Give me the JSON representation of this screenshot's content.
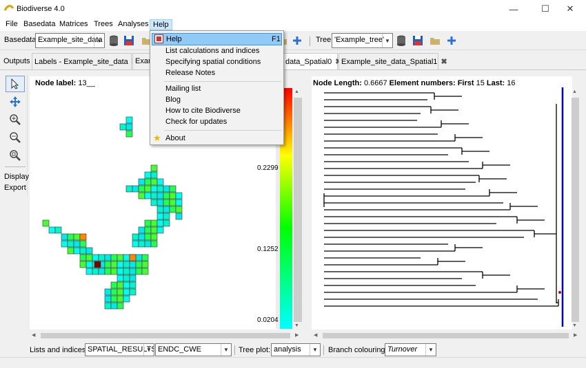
{
  "window": {
    "title": "Biodiverse 4.0",
    "minimize_icon": "minimize-icon",
    "maximize_icon": "maximize-icon",
    "close_icon": "close-icon"
  },
  "menubar": {
    "items": [
      "File",
      "Basedata",
      "Matrices",
      "Trees",
      "Analyses",
      "Help"
    ],
    "active": "Help"
  },
  "help_menu": {
    "items": [
      {
        "label": "Help",
        "shortcut": "F1",
        "icon": "help-book-icon"
      },
      {
        "label": "List calculations and indices"
      },
      {
        "label": "Specifying spatial conditions"
      },
      {
        "label": "Release Notes"
      },
      {
        "label": "Mailing list"
      },
      {
        "label": "Blog"
      },
      {
        "label": "How to cite Biodiverse"
      },
      {
        "label": "Check for updates"
      },
      {
        "label": "About",
        "icon": "star-icon"
      }
    ]
  },
  "toolbar": {
    "basedata_label": "Basedata",
    "basedata_value": "Example_site_data",
    "tree_label": "Tree",
    "tree_value": "'Example_tree'"
  },
  "tabs": {
    "outputs_label": "Outputs",
    "items": [
      {
        "label": "Labels - Example_site_data"
      },
      {
        "label": "Exam"
      },
      {
        "label": "data_Spatial0"
      },
      {
        "label": "Example_site_data_Spatial1"
      }
    ]
  },
  "left_tools": {
    "display": "Display",
    "export": "Export"
  },
  "map": {
    "node_label_prefix": "Node label:",
    "node_label_value": "13__"
  },
  "legend": {
    "ticks": [
      "0.2299",
      "0.1252",
      "0.0204"
    ],
    "colors": [
      "#ff0000",
      "#ffff00",
      "#00ff00",
      "#00ffff"
    ]
  },
  "tree": {
    "node_length_label": "Node Length:",
    "node_length_value": "0.6667",
    "element_numbers_label": "Element numbers: First",
    "first_value": "15",
    "last_label": "Last:",
    "last_value": "16"
  },
  "bottom": {
    "lists_label": "Lists and indices:",
    "lists_value": "SPATIAL_RESULTS",
    "index_value": "ENDC_CWE",
    "tree_plot_label": "Tree plot:",
    "tree_plot_value": "analysis",
    "branch_label": "Branch colouring:",
    "branch_value": "Turnover"
  },
  "colors": {
    "accent": "#0000cc",
    "highlight": "#91c9f7",
    "map_cyan": "#00ffee",
    "map_green": "#22ff55",
    "map_selected": "#7a0000"
  }
}
